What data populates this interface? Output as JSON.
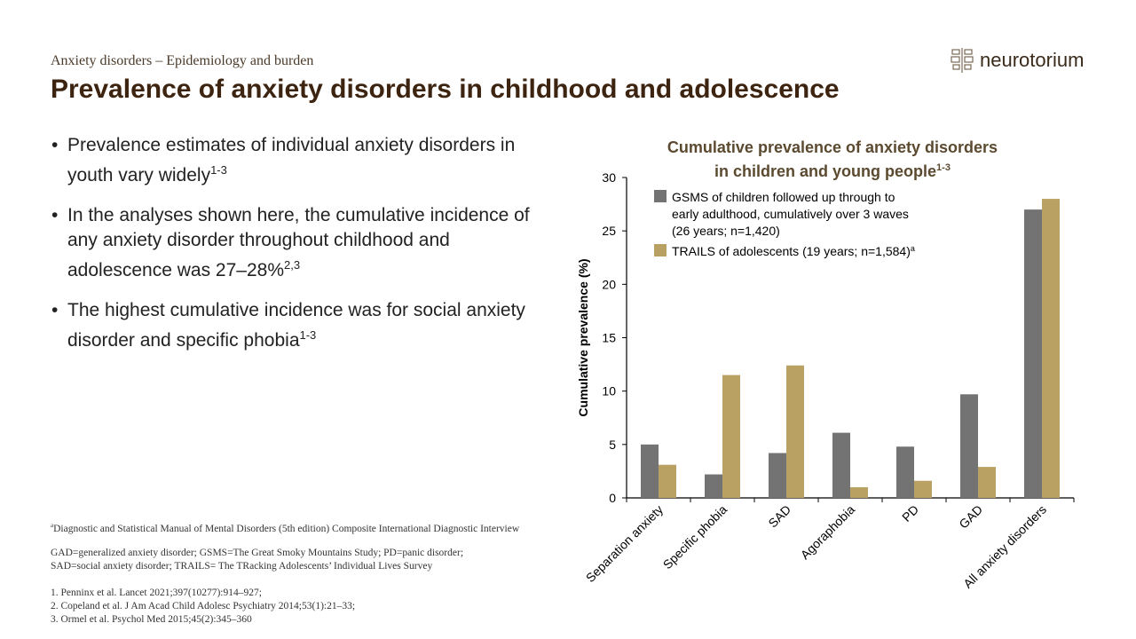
{
  "header": {
    "subtitle": "Anxiety disorders – Epidemiology and burden",
    "title": "Prevalence of anxiety disorders in childhood and adolescence",
    "logo_text": "neurotorium"
  },
  "bullets": [
    {
      "text": "Prevalence estimates of individual anxiety disorders in youth vary widely",
      "sup": "1-3"
    },
    {
      "text": "In the analyses shown here, the cumulative incidence of any anxiety disorder throughout childhood and adolescence was 27–28%",
      "sup": "2,3"
    },
    {
      "text": "The highest cumulative incidence was for social anxiety disorder and specific phobia",
      "sup": "1-3"
    }
  ],
  "footnotes": {
    "a_marker": "a",
    "a_text": "Diagnostic and Statistical Manual of Mental Disorders (5th edition) Composite International Diagnostic Interview",
    "abbrev_line1": "GAD=generalized anxiety disorder; GSMS=The Great Smoky Mountains Study; PD=panic disorder;",
    "abbrev_line2": "SAD=social anxiety disorder; TRAILS= The TRacking Adolescents’ Individual Lives Survey",
    "ref1": "1. Penninx et al. Lancet 2021;397(10277):914–927;",
    "ref2": "2. Copeland et al. J Am Acad Child Adolesc Psychiatry 2014;53(1):21–33;",
    "ref3": "3. Ormel et al. Psychol Med 2015;45(2):345–360"
  },
  "chart_data": {
    "type": "bar",
    "title_line1": "Cumulative prevalence of anxiety disorders",
    "title_line2": "in children and young people",
    "title_sup": "1-3",
    "ylabel": "Cumulative prevalence (%)",
    "xlabel": "",
    "ylim": [
      0,
      30
    ],
    "yticks": [
      "0",
      "5",
      "10",
      "15",
      "20",
      "25",
      "30"
    ],
    "categories": [
      "Separation anxiety",
      "Specific phobia",
      "SAD",
      "Agoraphobia",
      "PD",
      "GAD",
      "All anxiety disorders"
    ],
    "series": [
      {
        "name": "GSMS of children followed up through to early adulthood, cumulatively over 3 waves (26 years; n=1,420)",
        "legend_lines": [
          "GSMS of children followed up through to",
          "early adulthood, cumulatively over 3 waves",
          "(26 years; n=1,420)"
        ],
        "color": "#737373",
        "values": [
          5.0,
          2.2,
          4.2,
          6.1,
          4.8,
          9.7,
          27.0
        ]
      },
      {
        "name": "TRAILS of adolescents (19 years; n=1,584)",
        "legend_lines": [
          "TRAILS of adolescents (19 years; n=1,584)"
        ],
        "legend_sup": "a",
        "color": "#b9a063",
        "values": [
          3.1,
          11.5,
          12.4,
          1.0,
          1.6,
          2.9,
          28.0
        ]
      }
    ],
    "grid": false,
    "legend": "top-left"
  }
}
